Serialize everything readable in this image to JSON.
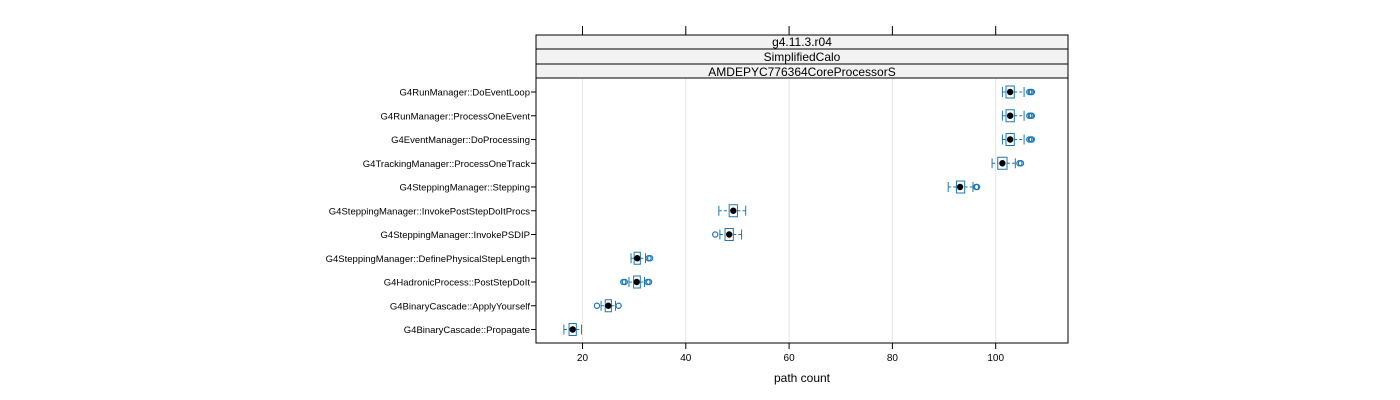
{
  "chart_data": {
    "type": "boxplot",
    "xlabel": "path count",
    "xlim": [
      11,
      114
    ],
    "xticks": [
      20,
      40,
      60,
      80,
      100
    ],
    "grid": true,
    "strips": [
      "g4.11.3.r04",
      "SimplifiedCalo",
      "AMDEPYC776364CoreProcessorS"
    ],
    "colors": {
      "box": "#1f78b4",
      "median": "#000000",
      "grid": "#e6e6e6"
    },
    "categories": [
      "G4RunManager::DoEventLoop",
      "G4RunManager::ProcessOneEvent",
      "G4EventManager::DoProcessing",
      "G4TrackingManager::ProcessOneTrack",
      "G4SteppingManager::Stepping",
      "G4SteppingManager::InvokePostStepDoItProcs",
      "G4SteppingManager::InvokePSDIP",
      "G4SteppingManager::DefinePhysicalStepLength",
      "G4HadronicProcess::PostStepDoIt",
      "G4BinaryCascade::ApplyYourself",
      "G4BinaryCascade::Propagate"
    ],
    "boxes": [
      {
        "min": 101.3,
        "q1": 102.0,
        "median": 102.8,
        "q3": 103.6,
        "max": 105.5,
        "outliers": [
          106.5,
          106.8,
          107.0
        ]
      },
      {
        "min": 101.3,
        "q1": 102.0,
        "median": 102.8,
        "q3": 103.6,
        "max": 105.5,
        "outliers": [
          106.5,
          106.8,
          107.0
        ]
      },
      {
        "min": 101.3,
        "q1": 102.0,
        "median": 102.8,
        "q3": 103.6,
        "max": 105.5,
        "outliers": [
          106.5,
          106.8,
          107.0
        ]
      },
      {
        "min": 99.3,
        "q1": 100.4,
        "median": 101.3,
        "q3": 102.2,
        "max": 103.8,
        "outliers": [
          104.6,
          104.9
        ]
      },
      {
        "min": 90.8,
        "q1": 92.4,
        "median": 93.1,
        "q3": 94.0,
        "max": 95.6,
        "outliers": [
          96.2,
          96.4
        ]
      },
      {
        "min": 46.4,
        "q1": 48.4,
        "median": 49.2,
        "q3": 50.0,
        "max": 51.6,
        "outliers": []
      },
      {
        "min": 46.6,
        "q1": 47.6,
        "median": 48.4,
        "q3": 49.2,
        "max": 50.8,
        "outliers": [
          45.7
        ]
      },
      {
        "min": 29.4,
        "q1": 30.0,
        "median": 30.6,
        "q3": 31.2,
        "max": 32.2,
        "outliers": [
          32.8,
          33.1
        ]
      },
      {
        "min": 29.0,
        "q1": 29.9,
        "median": 30.5,
        "q3": 31.2,
        "max": 32.0,
        "outliers": [
          27.9,
          28.2,
          32.6,
          32.9
        ]
      },
      {
        "min": 23.6,
        "q1": 24.4,
        "median": 25.0,
        "q3": 25.6,
        "max": 26.4,
        "outliers": [
          22.8,
          27.0
        ]
      },
      {
        "min": 16.4,
        "q1": 17.4,
        "median": 18.1,
        "q3": 18.8,
        "max": 19.8,
        "outliers": []
      }
    ]
  }
}
